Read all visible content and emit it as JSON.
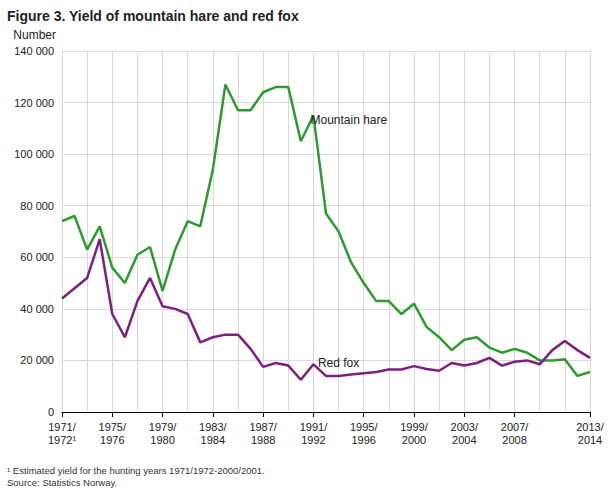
{
  "chart_data": {
    "type": "line",
    "title": "Figure 3. Yield of mountain hare and red fox",
    "y_label": "Number",
    "categories": [
      "1971/\n1972¹",
      null,
      null,
      null,
      "1975/\n1976",
      null,
      null,
      null,
      "1979/\n1980",
      null,
      null,
      null,
      "1983/\n1984",
      null,
      null,
      null,
      "1987/\n1988",
      null,
      null,
      null,
      "1991/\n1992",
      null,
      null,
      null,
      "1995/\n1996",
      null,
      null,
      null,
      "1999/\n2000",
      null,
      null,
      null,
      "2003/\n2004",
      null,
      null,
      null,
      "2007/\n2008",
      null,
      null,
      null,
      null,
      null,
      "2013/\n2014"
    ],
    "series": [
      {
        "name": "Mountain hare",
        "color": "#2f9a2f",
        "values": [
          74000,
          76000,
          63000,
          72000,
          56000,
          50000,
          61000,
          64000,
          47000,
          63000,
          74000,
          72000,
          94000,
          127000,
          117000,
          117000,
          124000,
          126000,
          126000,
          105000,
          115000,
          77000,
          70000,
          58000,
          50000,
          43000,
          43000,
          38000,
          42000,
          33000,
          29000,
          24000,
          28000,
          29000,
          25000,
          23000,
          24500,
          23000,
          20000,
          20000,
          20500,
          14000,
          15500
        ]
      },
      {
        "name": "Red fox",
        "color": "#7e1e80",
        "values": [
          44000,
          48000,
          52000,
          67000,
          38000,
          29000,
          43000,
          52000,
          41000,
          40000,
          38000,
          27000,
          29000,
          30000,
          30000,
          24500,
          17500,
          19000,
          18000,
          12500,
          18500,
          14000,
          14000,
          14500,
          15000,
          15500,
          16500,
          16500,
          17800,
          16700,
          16000,
          19000,
          18000,
          19000,
          21000,
          18000,
          19500,
          20000,
          18500,
          24000,
          27500,
          24000,
          21000
        ]
      }
    ],
    "ylim": [
      0,
      140000
    ],
    "yticks": [
      0,
      {
        "value": 20000,
        "label": "20 000"
      },
      {
        "value": 40000,
        "label": "40 000"
      },
      {
        "value": 60000,
        "label": "60 000"
      },
      {
        "value": 80000,
        "label": "80 000"
      },
      {
        "value": 100000,
        "label": "100 000"
      },
      {
        "value": 120000,
        "label": "120 000"
      },
      {
        "value": 140000,
        "label": "140 000"
      }
    ],
    "grid": true,
    "annotations": [
      "¹ Estimated yield for the hunting years 1971/1972-2000/2001.",
      "Source: Statistics Norway."
    ]
  }
}
